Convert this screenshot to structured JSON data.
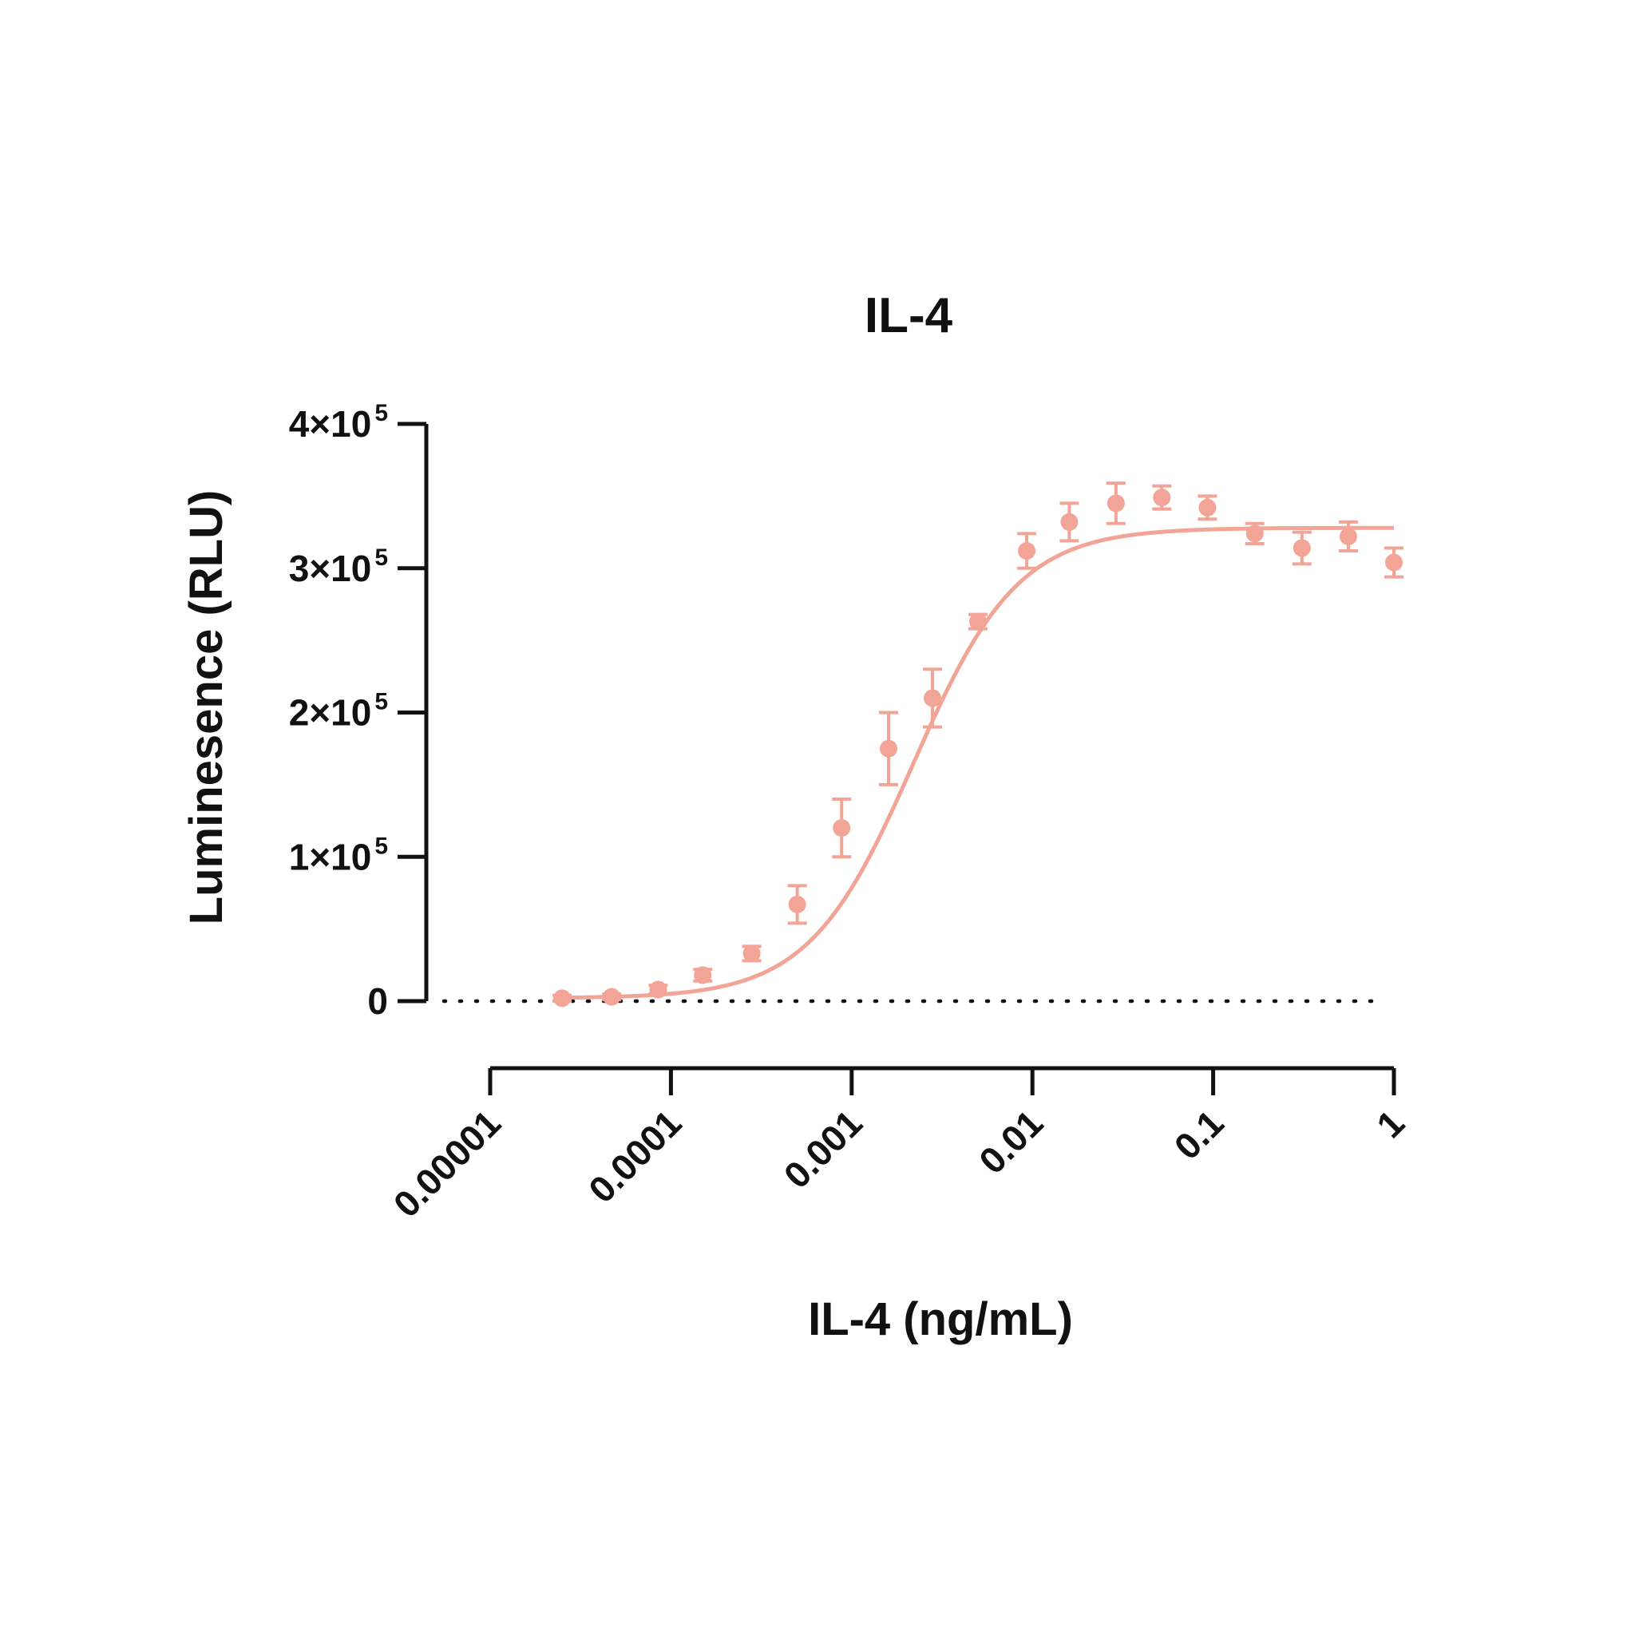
{
  "chart_data": {
    "type": "scatter",
    "title": "IL-4",
    "xlabel": "IL-4 (ng/mL)",
    "ylabel": "Luminesence (RLU)",
    "x_scale": "log",
    "xlim": [
      1e-05,
      1
    ],
    "ylim": [
      0,
      400000
    ],
    "x_ticks": [
      {
        "value": 1e-05,
        "label": "0.00001"
      },
      {
        "value": 0.0001,
        "label": "0.0001"
      },
      {
        "value": 0.001,
        "label": "0.001"
      },
      {
        "value": 0.01,
        "label": "0.01"
      },
      {
        "value": 0.1,
        "label": "0.1"
      },
      {
        "value": 1,
        "label": "1"
      }
    ],
    "y_ticks": [
      {
        "value": 0,
        "base": "0",
        "exp": ""
      },
      {
        "value": 100000,
        "base": "1×10",
        "exp": "5"
      },
      {
        "value": 200000,
        "base": "2×10",
        "exp": "5"
      },
      {
        "value": 300000,
        "base": "3×10",
        "exp": "5"
      },
      {
        "value": 400000,
        "base": "4×10",
        "exp": "5"
      }
    ],
    "grid": false,
    "baseline": {
      "y": 0,
      "style": "dotted"
    },
    "color": "#f2a596",
    "series": [
      {
        "points": [
          {
            "x": 2.5e-05,
            "y": 2000,
            "err": 2000
          },
          {
            "x": 4.7e-05,
            "y": 3000,
            "err": 2000
          },
          {
            "x": 8.5e-05,
            "y": 8000,
            "err": 3000
          },
          {
            "x": 0.00015,
            "y": 18000,
            "err": 4000
          },
          {
            "x": 0.00028,
            "y": 33000,
            "err": 5000
          },
          {
            "x": 0.0005,
            "y": 67000,
            "err": 13000
          },
          {
            "x": 0.00088,
            "y": 120000,
            "err": 20000
          },
          {
            "x": 0.0016,
            "y": 175000,
            "err": 25000
          },
          {
            "x": 0.0028,
            "y": 210000,
            "err": 20000
          },
          {
            "x": 0.005,
            "y": 263000,
            "err": 5000
          },
          {
            "x": 0.0093,
            "y": 312000,
            "err": 12000
          },
          {
            "x": 0.016,
            "y": 332000,
            "err": 13000
          },
          {
            "x": 0.029,
            "y": 345000,
            "err": 14000
          },
          {
            "x": 0.052,
            "y": 349000,
            "err": 8000
          },
          {
            "x": 0.093,
            "y": 342000,
            "err": 8000
          },
          {
            "x": 0.17,
            "y": 324000,
            "err": 7000
          },
          {
            "x": 0.31,
            "y": 314000,
            "err": 11000
          },
          {
            "x": 0.56,
            "y": 322000,
            "err": 10000
          },
          {
            "x": 1.0,
            "y": 304000,
            "err": 10000
          }
        ]
      }
    ],
    "fit": {
      "model": "4PL",
      "bottom": 2000,
      "top": 328000,
      "ec50": 0.0022,
      "hill": 1.5,
      "x_range": [
        2.5e-05,
        1.0
      ]
    }
  }
}
